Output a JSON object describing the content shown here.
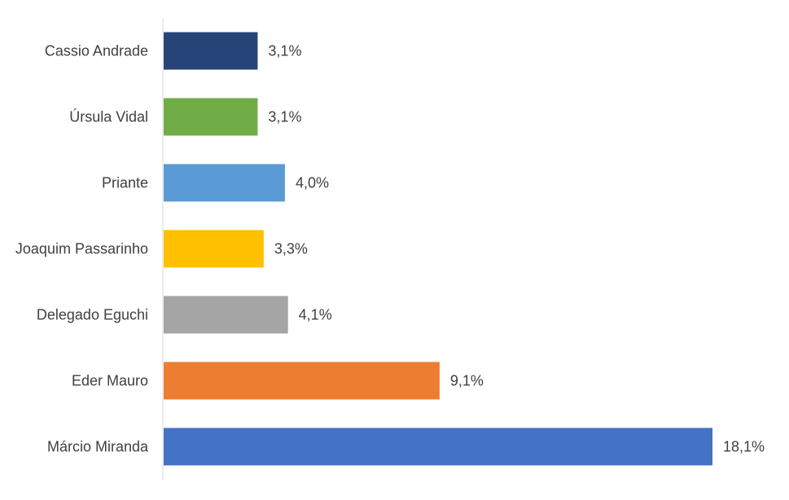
{
  "chart_data": {
    "type": "bar",
    "orientation": "horizontal",
    "categories": [
      "Cassio Andrade",
      "Úrsula Vidal",
      "Priante",
      "Joaquim Passarinho",
      "Delegado Eguchi",
      "Eder Mauro",
      "Márcio Miranda"
    ],
    "values": [
      3.1,
      3.1,
      4.0,
      3.3,
      4.1,
      9.1,
      18.1
    ],
    "value_labels": [
      "3,1%",
      "3,1%",
      "4,0%",
      "3,3%",
      "4,1%",
      "9,1%",
      "18,1%"
    ],
    "colors": [
      "#264478",
      "#70AD47",
      "#5B9BD5",
      "#FFC000",
      "#A5A5A5",
      "#ED7D31",
      "#4472C4"
    ],
    "title": "",
    "xlabel": "",
    "ylabel": "",
    "xlim": [
      0,
      18.1
    ],
    "grid": false,
    "legend": "none"
  }
}
